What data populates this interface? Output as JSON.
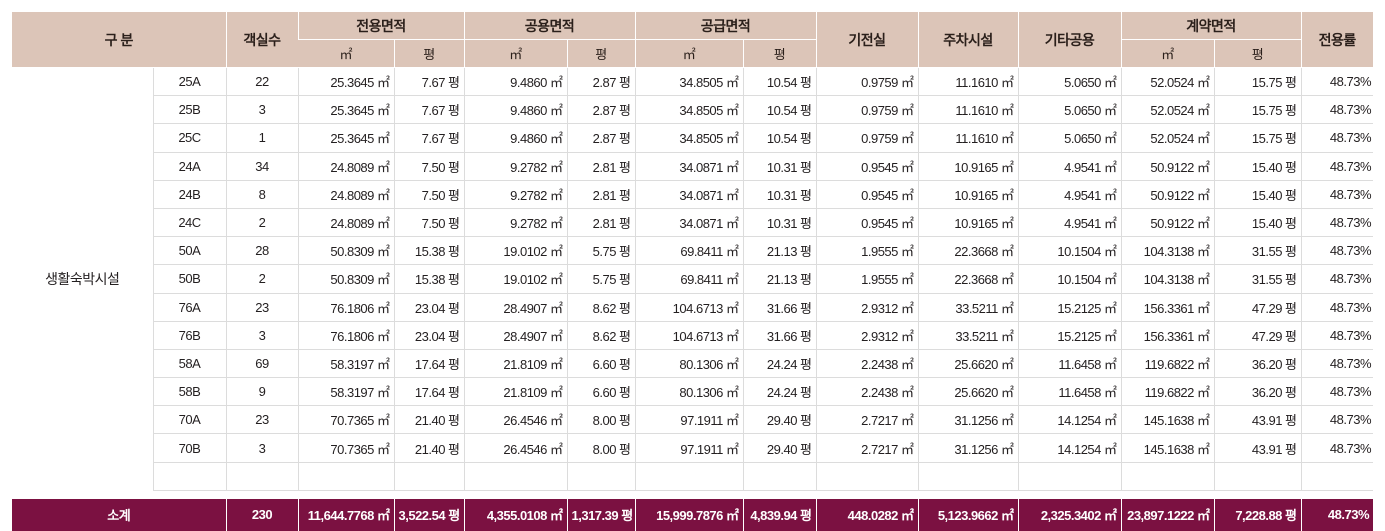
{
  "header": {
    "category": "구 분",
    "rooms": "객실수",
    "exclusive": "전용면적",
    "common": "공용면적",
    "supply": "공급면적",
    "electric": "기전실",
    "parking": "주차시설",
    "other_common": "기타공용",
    "contract": "계약면적",
    "ratio": "전용률",
    "unit_m2": "㎡",
    "unit_pyeong": "평"
  },
  "category_label": "생활숙박시설",
  "rows": [
    {
      "code": "25A",
      "rooms": "22",
      "ex_m2": "25.3645 ㎡",
      "ex_py": "7.67 평",
      "co_m2": "9.4860 ㎡",
      "co_py": "2.87 평",
      "su_m2": "34.8505 ㎡",
      "su_py": "10.54 평",
      "el": "0.9759 ㎡",
      "pk": "11.1610 ㎡",
      "ot": "5.0650 ㎡",
      "ct_m2": "52.0524 ㎡",
      "ct_py": "15.75 평",
      "ratio": "48.73%"
    },
    {
      "code": "25B",
      "rooms": "3",
      "ex_m2": "25.3645 ㎡",
      "ex_py": "7.67 평",
      "co_m2": "9.4860 ㎡",
      "co_py": "2.87 평",
      "su_m2": "34.8505 ㎡",
      "su_py": "10.54 평",
      "el": "0.9759 ㎡",
      "pk": "11.1610 ㎡",
      "ot": "5.0650 ㎡",
      "ct_m2": "52.0524 ㎡",
      "ct_py": "15.75 평",
      "ratio": "48.73%"
    },
    {
      "code": "25C",
      "rooms": "1",
      "ex_m2": "25.3645 ㎡",
      "ex_py": "7.67 평",
      "co_m2": "9.4860 ㎡",
      "co_py": "2.87 평",
      "su_m2": "34.8505 ㎡",
      "su_py": "10.54 평",
      "el": "0.9759 ㎡",
      "pk": "11.1610 ㎡",
      "ot": "5.0650 ㎡",
      "ct_m2": "52.0524 ㎡",
      "ct_py": "15.75 평",
      "ratio": "48.73%"
    },
    {
      "code": "24A",
      "rooms": "34",
      "ex_m2": "24.8089 ㎡",
      "ex_py": "7.50 평",
      "co_m2": "9.2782 ㎡",
      "co_py": "2.81 평",
      "su_m2": "34.0871 ㎡",
      "su_py": "10.31 평",
      "el": "0.9545 ㎡",
      "pk": "10.9165 ㎡",
      "ot": "4.9541 ㎡",
      "ct_m2": "50.9122 ㎡",
      "ct_py": "15.40 평",
      "ratio": "48.73%"
    },
    {
      "code": "24B",
      "rooms": "8",
      "ex_m2": "24.8089 ㎡",
      "ex_py": "7.50 평",
      "co_m2": "9.2782 ㎡",
      "co_py": "2.81 평",
      "su_m2": "34.0871 ㎡",
      "su_py": "10.31 평",
      "el": "0.9545 ㎡",
      "pk": "10.9165 ㎡",
      "ot": "4.9541 ㎡",
      "ct_m2": "50.9122 ㎡",
      "ct_py": "15.40 평",
      "ratio": "48.73%"
    },
    {
      "code": "24C",
      "rooms": "2",
      "ex_m2": "24.8089 ㎡",
      "ex_py": "7.50 평",
      "co_m2": "9.2782 ㎡",
      "co_py": "2.81 평",
      "su_m2": "34.0871 ㎡",
      "su_py": "10.31 평",
      "el": "0.9545 ㎡",
      "pk": "10.9165 ㎡",
      "ot": "4.9541 ㎡",
      "ct_m2": "50.9122 ㎡",
      "ct_py": "15.40 평",
      "ratio": "48.73%"
    },
    {
      "code": "50A",
      "rooms": "28",
      "ex_m2": "50.8309 ㎡",
      "ex_py": "15.38 평",
      "co_m2": "19.0102 ㎡",
      "co_py": "5.75 평",
      "su_m2": "69.8411 ㎡",
      "su_py": "21.13 평",
      "el": "1.9555 ㎡",
      "pk": "22.3668 ㎡",
      "ot": "10.1504 ㎡",
      "ct_m2": "104.3138 ㎡",
      "ct_py": "31.55 평",
      "ratio": "48.73%"
    },
    {
      "code": "50B",
      "rooms": "2",
      "ex_m2": "50.8309 ㎡",
      "ex_py": "15.38 평",
      "co_m2": "19.0102 ㎡",
      "co_py": "5.75 평",
      "su_m2": "69.8411 ㎡",
      "su_py": "21.13 평",
      "el": "1.9555 ㎡",
      "pk": "22.3668 ㎡",
      "ot": "10.1504 ㎡",
      "ct_m2": "104.3138 ㎡",
      "ct_py": "31.55 평",
      "ratio": "48.73%"
    },
    {
      "code": "76A",
      "rooms": "23",
      "ex_m2": "76.1806 ㎡",
      "ex_py": "23.04 평",
      "co_m2": "28.4907 ㎡",
      "co_py": "8.62 평",
      "su_m2": "104.6713 ㎡",
      "su_py": "31.66 평",
      "el": "2.9312 ㎡",
      "pk": "33.5211 ㎡",
      "ot": "15.2125 ㎡",
      "ct_m2": "156.3361 ㎡",
      "ct_py": "47.29 평",
      "ratio": "48.73%"
    },
    {
      "code": "76B",
      "rooms": "3",
      "ex_m2": "76.1806 ㎡",
      "ex_py": "23.04 평",
      "co_m2": "28.4907 ㎡",
      "co_py": "8.62 평",
      "su_m2": "104.6713 ㎡",
      "su_py": "31.66 평",
      "el": "2.9312 ㎡",
      "pk": "33.5211 ㎡",
      "ot": "15.2125 ㎡",
      "ct_m2": "156.3361 ㎡",
      "ct_py": "47.29 평",
      "ratio": "48.73%"
    },
    {
      "code": "58A",
      "rooms": "69",
      "ex_m2": "58.3197 ㎡",
      "ex_py": "17.64 평",
      "co_m2": "21.8109 ㎡",
      "co_py": "6.60 평",
      "su_m2": "80.1306 ㎡",
      "su_py": "24.24 평",
      "el": "2.2438 ㎡",
      "pk": "25.6620 ㎡",
      "ot": "11.6458 ㎡",
      "ct_m2": "119.6822 ㎡",
      "ct_py": "36.20 평",
      "ratio": "48.73%"
    },
    {
      "code": "58B",
      "rooms": "9",
      "ex_m2": "58.3197 ㎡",
      "ex_py": "17.64 평",
      "co_m2": "21.8109 ㎡",
      "co_py": "6.60 평",
      "su_m2": "80.1306 ㎡",
      "su_py": "24.24 평",
      "el": "2.2438 ㎡",
      "pk": "25.6620 ㎡",
      "ot": "11.6458 ㎡",
      "ct_m2": "119.6822 ㎡",
      "ct_py": "36.20 평",
      "ratio": "48.73%"
    },
    {
      "code": "70A",
      "rooms": "23",
      "ex_m2": "70.7365 ㎡",
      "ex_py": "21.40 평",
      "co_m2": "26.4546 ㎡",
      "co_py": "8.00 평",
      "su_m2": "97.1911 ㎡",
      "su_py": "29.40 평",
      "el": "2.7217 ㎡",
      "pk": "31.1256 ㎡",
      "ot": "14.1254 ㎡",
      "ct_m2": "145.1638 ㎡",
      "ct_py": "43.91 평",
      "ratio": "48.73%"
    },
    {
      "code": "70B",
      "rooms": "3",
      "ex_m2": "70.7365 ㎡",
      "ex_py": "21.40 평",
      "co_m2": "26.4546 ㎡",
      "co_py": "8.00 평",
      "su_m2": "97.1911 ㎡",
      "su_py": "29.40 평",
      "el": "2.7217 ㎡",
      "pk": "31.1256 ㎡",
      "ot": "14.1254 ㎡",
      "ct_m2": "145.1638 ㎡",
      "ct_py": "43.91 평",
      "ratio": "48.73%"
    }
  ],
  "total": {
    "label": "소계",
    "rooms": "230",
    "ex_m2": "11,644.7768 ㎡",
    "ex_py": "3,522.54 평",
    "co_m2": "4,355.0108 ㎡",
    "co_py": "1,317.39 평",
    "su_m2": "15,999.7876 ㎡",
    "su_py": "4,839.94 평",
    "el": "448.0282 ㎡",
    "pk": "5,123.9662 ㎡",
    "ot": "2,325.3402 ㎡",
    "ct_m2": "23,897.1222 ㎡",
    "ct_py": "7,228.88 평",
    "ratio": "48.73%"
  },
  "colors": {
    "header_bg": "#dcc5b8",
    "total_bg": "#7b1141",
    "grid": "#dcdcdc"
  }
}
